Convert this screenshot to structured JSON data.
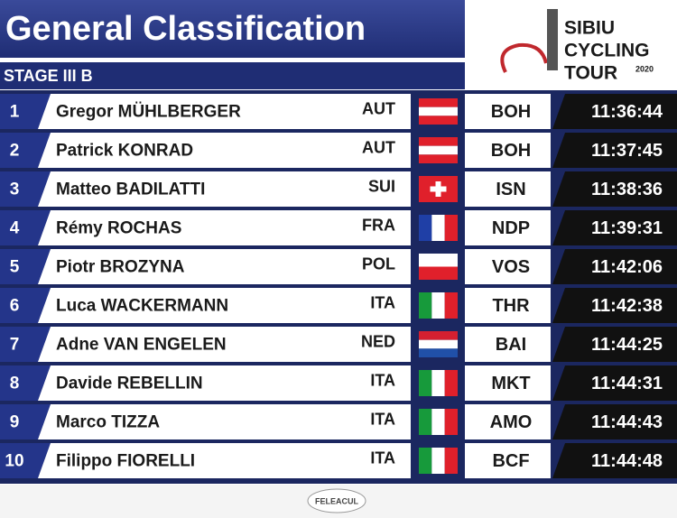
{
  "header": {
    "title": "General Classification",
    "stage": "STAGE III B"
  },
  "logo": {
    "line1": "SIBIU",
    "line2": "CYCLING",
    "line3": "TOUR",
    "year": "2020"
  },
  "table": {
    "rows": [
      {
        "rank": 1,
        "name": "Gregor MÜHLBERGER",
        "country": "AUT",
        "team": "BOH",
        "time": "11:36:44"
      },
      {
        "rank": 2,
        "name": "Patrick KONRAD",
        "country": "AUT",
        "team": "BOH",
        "time": "11:37:45"
      },
      {
        "rank": 3,
        "name": "Matteo BADILATTI",
        "country": "SUI",
        "team": "ISN",
        "time": "11:38:36"
      },
      {
        "rank": 4,
        "name": "Rémy ROCHAS",
        "country": "FRA",
        "team": "NDP",
        "time": "11:39:31"
      },
      {
        "rank": 5,
        "name": "Piotr BROZYNA",
        "country": "POL",
        "team": "VOS",
        "time": "11:42:06"
      },
      {
        "rank": 6,
        "name": "Luca WACKERMANN",
        "country": "ITA",
        "team": "THR",
        "time": "11:42:38"
      },
      {
        "rank": 7,
        "name": "Adne VAN ENGELEN",
        "country": "NED",
        "team": "BAI",
        "time": "11:44:25"
      },
      {
        "rank": 8,
        "name": "Davide REBELLIN",
        "country": "ITA",
        "team": "MKT",
        "time": "11:44:31"
      },
      {
        "rank": 9,
        "name": "Marco TIZZA",
        "country": "ITA",
        "team": "AMO",
        "time": "11:44:43"
      },
      {
        "rank": 10,
        "name": "Filippo FIORELLI",
        "country": "ITA",
        "team": "BCF",
        "time": "11:44:48"
      }
    ]
  },
  "footer": {
    "sponsor": "FELEACUL"
  }
}
